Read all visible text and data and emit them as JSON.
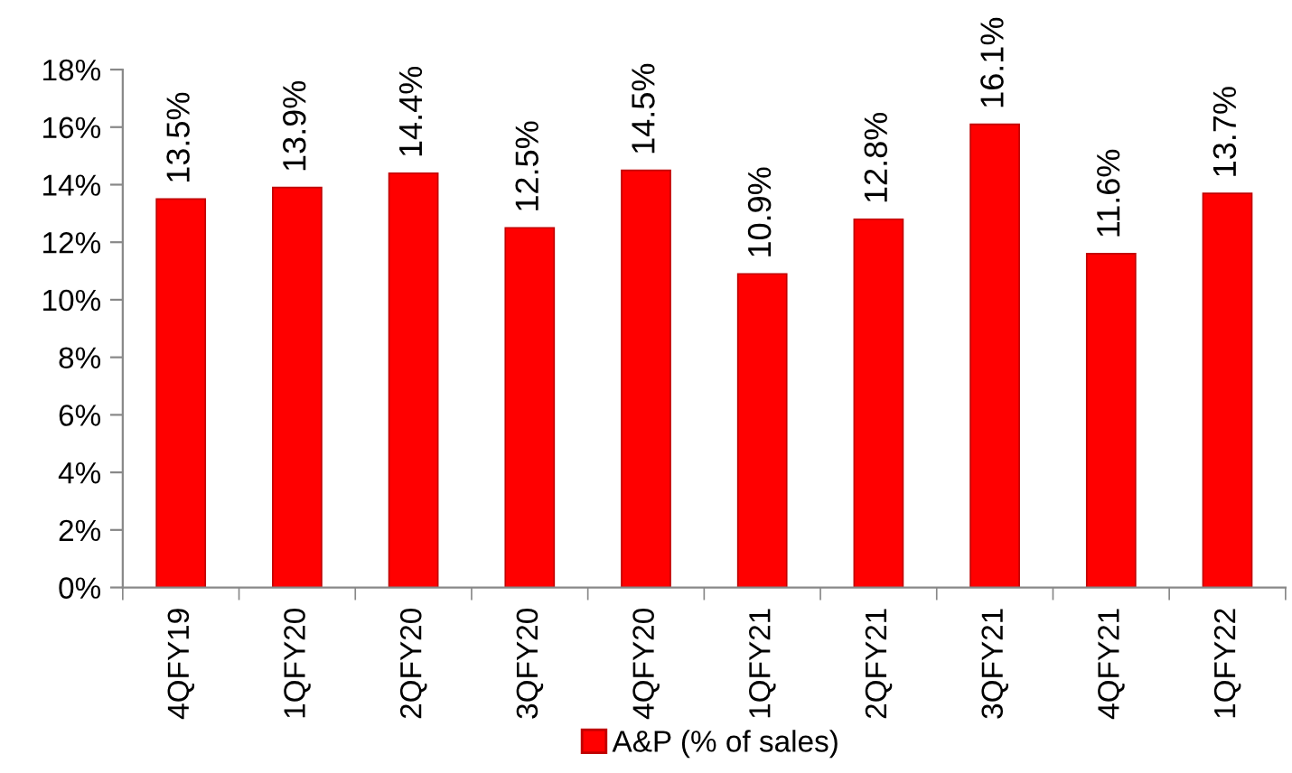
{
  "chart_data": {
    "type": "bar",
    "categories": [
      "4QFY19",
      "1QFY20",
      "2QFY20",
      "3QFY20",
      "4QFY20",
      "1QFY21",
      "2QFY21",
      "3QFY21",
      "4QFY21",
      "1QFY22"
    ],
    "series": [
      {
        "name": "A&P (% of sales)",
        "color": "#ff0000",
        "values": [
          13.5,
          13.9,
          14.4,
          12.5,
          14.5,
          10.9,
          12.8,
          16.1,
          11.6,
          13.7
        ],
        "value_labels": [
          "13.5%",
          "13.9%",
          "14.4%",
          "12.5%",
          "14.5%",
          "10.9%",
          "12.8%",
          "16.1%",
          "11.6%",
          "13.7%"
        ]
      }
    ],
    "ylim": [
      0,
      18
    ],
    "yticks": [
      {
        "value": 0,
        "label": "0%"
      },
      {
        "value": 2,
        "label": "2%"
      },
      {
        "value": 4,
        "label": "4%"
      },
      {
        "value": 6,
        "label": "6%"
      },
      {
        "value": 8,
        "label": "8%"
      },
      {
        "value": 10,
        "label": "10%"
      },
      {
        "value": 12,
        "label": "12%"
      },
      {
        "value": 14,
        "label": "14%"
      },
      {
        "value": 16,
        "label": "16%"
      },
      {
        "value": 18,
        "label": "18%"
      }
    ],
    "grid": false,
    "legend": "bottom"
  }
}
